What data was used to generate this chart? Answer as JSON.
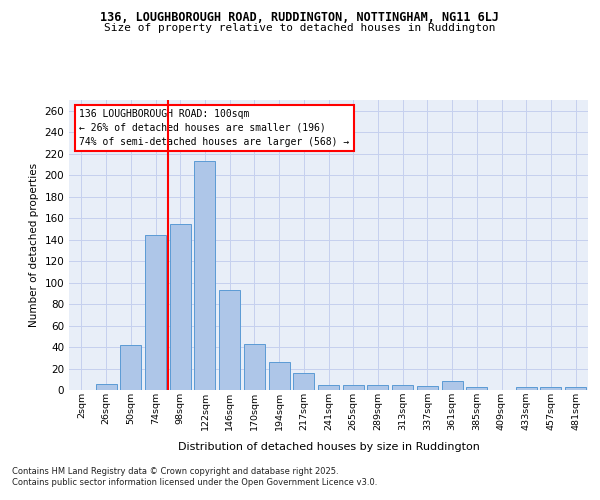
{
  "title_line1": "136, LOUGHBOROUGH ROAD, RUDDINGTON, NOTTINGHAM, NG11 6LJ",
  "title_line2": "Size of property relative to detached houses in Ruddington",
  "xlabel": "Distribution of detached houses by size in Ruddington",
  "ylabel": "Number of detached properties",
  "bar_color": "#aec6e8",
  "bar_edge_color": "#5b9bd5",
  "background_color": "#e8eef8",
  "grid_color": "#c5d0ee",
  "categories": [
    "2sqm",
    "26sqm",
    "50sqm",
    "74sqm",
    "98sqm",
    "122sqm",
    "146sqm",
    "170sqm",
    "194sqm",
    "217sqm",
    "241sqm",
    "265sqm",
    "289sqm",
    "313sqm",
    "337sqm",
    "361sqm",
    "385sqm",
    "409sqm",
    "433sqm",
    "457sqm",
    "481sqm"
  ],
  "values": [
    0,
    6,
    42,
    144,
    155,
    213,
    93,
    43,
    26,
    16,
    5,
    5,
    5,
    5,
    4,
    8,
    3,
    0,
    3,
    3,
    3
  ],
  "ylim": [
    0,
    270
  ],
  "yticks": [
    0,
    20,
    40,
    60,
    80,
    100,
    120,
    140,
    160,
    180,
    200,
    220,
    240,
    260
  ],
  "red_line_index": 3.5,
  "annotation_title": "136 LOUGHBOROUGH ROAD: 100sqm",
  "annotation_line2": "← 26% of detached houses are smaller (196)",
  "annotation_line3": "74% of semi-detached houses are larger (568) →",
  "footnote1": "Contains HM Land Registry data © Crown copyright and database right 2025.",
  "footnote2": "Contains public sector information licensed under the Open Government Licence v3.0."
}
